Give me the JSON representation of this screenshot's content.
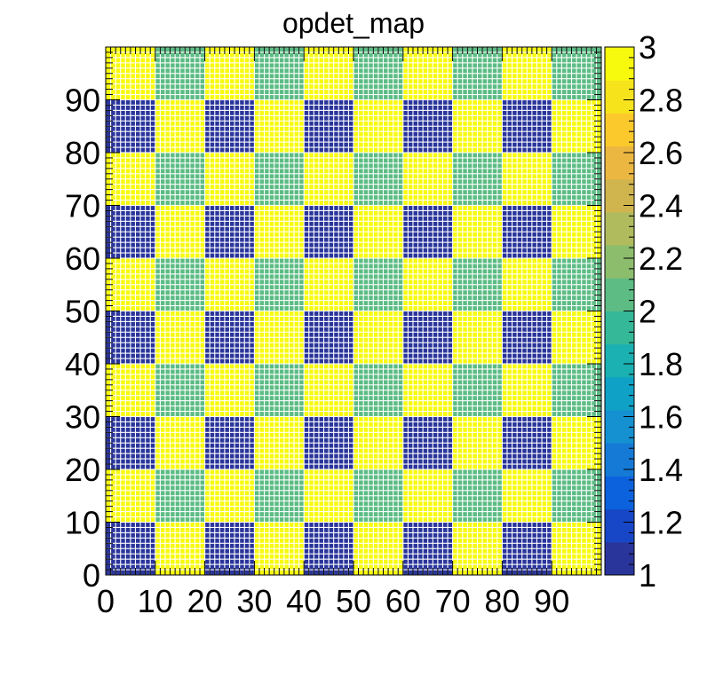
{
  "chart_data": {
    "type": "heatmap",
    "title": "opdet_map",
    "xlabel": "",
    "ylabel": "",
    "xlim": [
      0,
      100
    ],
    "ylim": [
      0,
      100
    ],
    "x_ticks": [
      "0",
      "10",
      "20",
      "30",
      "40",
      "50",
      "60",
      "70",
      "80",
      "90"
    ],
    "y_ticks": [
      "0",
      "10",
      "20",
      "30",
      "40",
      "50",
      "60",
      "70",
      "80",
      "90"
    ],
    "colorbar_ticks": [
      "1",
      "1.2",
      "1.4",
      "1.6",
      "1.8",
      "2",
      "2.2",
      "2.4",
      "2.6",
      "2.8",
      "3"
    ],
    "z_range": [
      1,
      3
    ],
    "block_size": 10,
    "cells_per_unit": 1,
    "pattern_description_values": {
      "blue_value": 1,
      "green_value": 2,
      "yellow_value": 3
    },
    "blocks": [
      [
        1,
        3,
        1,
        3,
        1,
        3,
        1,
        3,
        1,
        3
      ],
      [
        3,
        2,
        3,
        2,
        3,
        2,
        3,
        2,
        3,
        2
      ],
      [
        1,
        3,
        1,
        3,
        1,
        3,
        1,
        3,
        1,
        3
      ],
      [
        3,
        2,
        3,
        2,
        3,
        2,
        3,
        2,
        3,
        2
      ],
      [
        1,
        3,
        1,
        3,
        1,
        3,
        1,
        3,
        1,
        3
      ],
      [
        3,
        2,
        3,
        2,
        3,
        2,
        3,
        2,
        3,
        2
      ],
      [
        1,
        3,
        1,
        3,
        1,
        3,
        1,
        3,
        1,
        3
      ],
      [
        3,
        2,
        3,
        2,
        3,
        2,
        3,
        2,
        3,
        2
      ],
      [
        1,
        3,
        1,
        3,
        1,
        3,
        1,
        3,
        1,
        3
      ],
      [
        3,
        2,
        3,
        2,
        3,
        2,
        3,
        2,
        3,
        2
      ]
    ],
    "palette": [
      "#2a359b",
      "#1747c6",
      "#0c62dc",
      "#157ad6",
      "#1590d1",
      "#0fa2c6",
      "#1bb0b2",
      "#35b898",
      "#5cbc84",
      "#8cbd6d",
      "#b0bb5e",
      "#d0b54f",
      "#ebb740",
      "#fbc92c",
      "#f7e31c",
      "#f8fa0d"
    ],
    "grid": false,
    "colorbar": "right"
  }
}
